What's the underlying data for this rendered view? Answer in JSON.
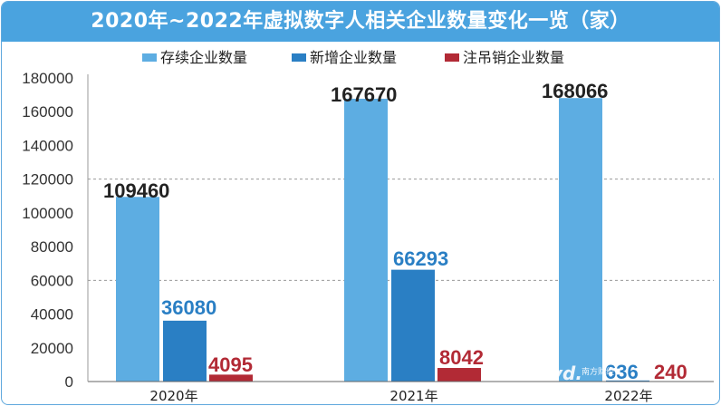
{
  "chart_data": {
    "type": "bar",
    "title": "2020年~2022年虚拟数字人相关企业数量变化一览（家）",
    "categories": [
      "2020年",
      "2021年",
      "2022年"
    ],
    "series": [
      {
        "name": "存续企业数量",
        "color": "#5dade2",
        "label_color": "#222222",
        "values": [
          109460,
          167670,
          168066
        ]
      },
      {
        "name": "新增企业数量",
        "color": "#2a7fc4",
        "label_color": "#2a7fc4",
        "values": [
          36080,
          66293,
          636
        ]
      },
      {
        "name": "注吊销企业数量",
        "color": "#b22a35",
        "label_color": "#b22a35",
        "values": [
          4095,
          8042,
          240
        ]
      }
    ],
    "data_labels": [
      [
        "109460",
        "36080",
        "4095"
      ],
      [
        "167670",
        "66293",
        "8042"
      ],
      [
        "168066",
        "636",
        "240"
      ]
    ],
    "yticks": [
      "0",
      "20000",
      "40000",
      "60000",
      "80000",
      "100000",
      "120000",
      "140000",
      "160000",
      "180000"
    ],
    "ylim": [
      0,
      180000
    ],
    "gridlines": [
      60000,
      120000
    ],
    "legend_position": "top"
  },
  "watermark": {
    "mark": "vd.",
    "text": "南方财经"
  }
}
